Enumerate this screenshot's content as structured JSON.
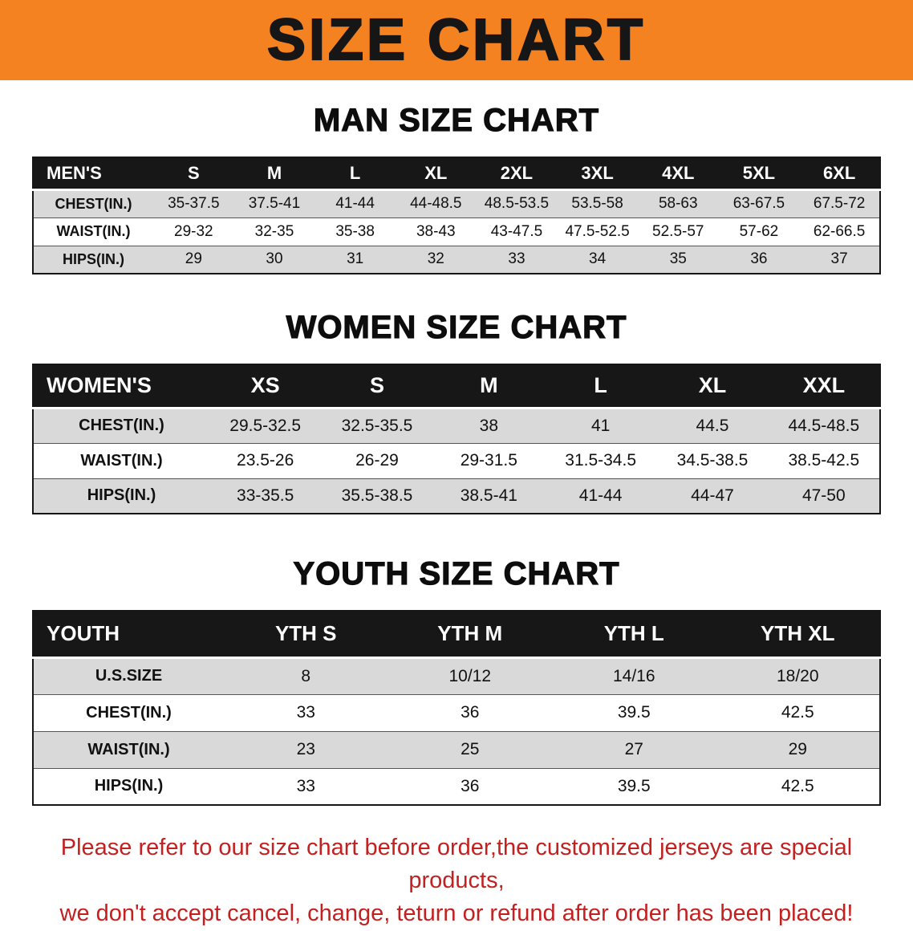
{
  "banner": {
    "title": "SIZE CHART",
    "bg_color": "#f58220"
  },
  "men": {
    "heading": "MAN SIZE CHART",
    "corner": "MEN'S",
    "cols": [
      "S",
      "M",
      "L",
      "XL",
      "2XL",
      "3XL",
      "4XL",
      "5XL",
      "6XL"
    ],
    "rows": [
      {
        "label": "CHEST(IN.)",
        "v": [
          "35-37.5",
          "37.5-41",
          "41-44",
          "44-48.5",
          "48.5-53.5",
          "53.5-58",
          "58-63",
          "63-67.5",
          "67.5-72"
        ]
      },
      {
        "label": "WAIST(IN.)",
        "v": [
          "29-32",
          "32-35",
          "35-38",
          "38-43",
          "43-47.5",
          "47.5-52.5",
          "52.5-57",
          "57-62",
          "62-66.5"
        ]
      },
      {
        "label": "HIPS(IN.)",
        "v": [
          "29",
          "30",
          "31",
          "32",
          "33",
          "34",
          "35",
          "36",
          "37"
        ]
      }
    ]
  },
  "women": {
    "heading": "WOMEN SIZE CHART",
    "corner": "WOMEN'S",
    "cols": [
      "XS",
      "S",
      "M",
      "L",
      "XL",
      "XXL"
    ],
    "rows": [
      {
        "label": "CHEST(IN.)",
        "v": [
          "29.5-32.5",
          "32.5-35.5",
          "38",
          "41",
          "44.5",
          "44.5-48.5"
        ]
      },
      {
        "label": "WAIST(IN.)",
        "v": [
          "23.5-26",
          "26-29",
          "29-31.5",
          "31.5-34.5",
          "34.5-38.5",
          "38.5-42.5"
        ]
      },
      {
        "label": "HIPS(IN.)",
        "v": [
          "33-35.5",
          "35.5-38.5",
          "38.5-41",
          "41-44",
          "44-47",
          "47-50"
        ]
      }
    ]
  },
  "youth": {
    "heading": "YOUTH SIZE CHART",
    "corner": "YOUTH",
    "cols": [
      "YTH S",
      "YTH M",
      "YTH L",
      "YTH XL"
    ],
    "rows": [
      {
        "label": "U.S.SIZE",
        "v": [
          "8",
          "10/12",
          "14/16",
          "18/20"
        ]
      },
      {
        "label": "CHEST(IN.)",
        "v": [
          "33",
          "36",
          "39.5",
          "42.5"
        ]
      },
      {
        "label": "WAIST(IN.)",
        "v": [
          "23",
          "25",
          "27",
          "29"
        ]
      },
      {
        "label": "HIPS(IN.)",
        "v": [
          "33",
          "36",
          "39.5",
          "42.5"
        ]
      }
    ]
  },
  "footer": {
    "line1": "Please refer to our size chart before order,the customized jerseys are special products,",
    "line2": "we don't accept cancel, change, teturn or refund after order has been placed!"
  }
}
